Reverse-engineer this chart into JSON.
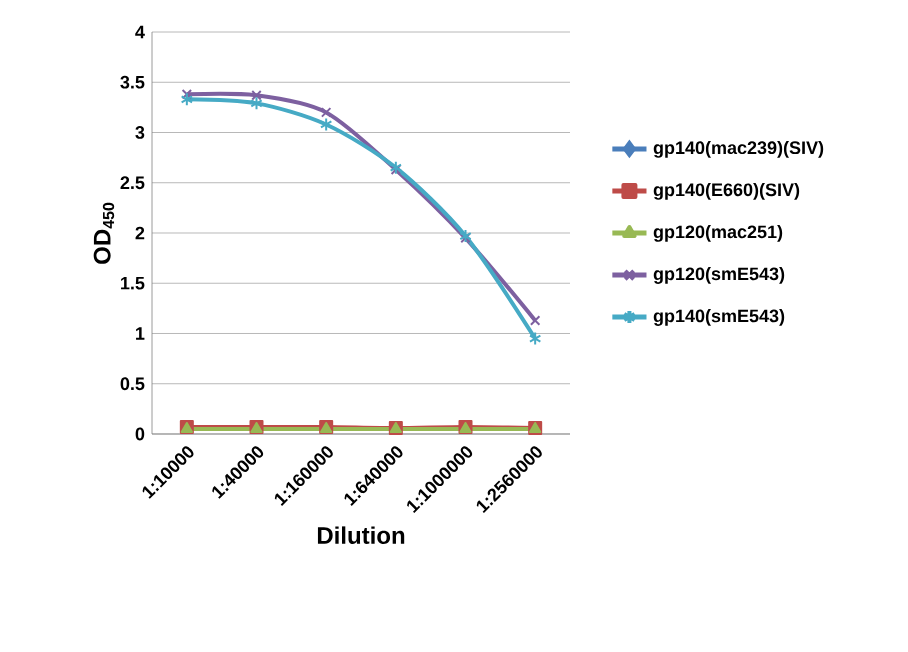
{
  "chart_data": {
    "type": "line",
    "xlabel": "Dilution",
    "ylabel": "OD$_{450}$",
    "categories": [
      "1:10000",
      "1:40000",
      "1:160000",
      "1:640000",
      "1:1000000",
      "1:2560000"
    ],
    "series": [
      {
        "name": "gp140(mac239)(SIV)",
        "color": "#4a7ebb",
        "marker": "diamond",
        "values": [
          null,
          null,
          null,
          null,
          null,
          null
        ]
      },
      {
        "name": "gp140(E660)(SIV)",
        "color": "#be4b48",
        "marker": "square",
        "values": [
          0.07,
          0.07,
          0.07,
          0.06,
          0.07,
          0.06
        ]
      },
      {
        "name": "gp120(mac251)",
        "color": "#98b954",
        "marker": "triangle",
        "values": [
          0.05,
          0.05,
          0.05,
          0.05,
          0.05,
          0.05
        ]
      },
      {
        "name": "gp120(smE543)",
        "color": "#7d60a0",
        "marker": "cross",
        "values": [
          3.38,
          3.37,
          3.2,
          2.63,
          1.95,
          1.13
        ]
      },
      {
        "name": "gp140(smE543)",
        "color": "#46aac5",
        "marker": "cross",
        "values": [
          3.33,
          3.29,
          3.08,
          2.65,
          1.97,
          0.95
        ]
      }
    ],
    "ylim": [
      0,
      4
    ],
    "yticks": [
      0,
      0.5,
      1,
      1.5,
      2,
      2.5,
      3,
      3.5,
      4
    ],
    "grid": "y",
    "legend": "right"
  }
}
